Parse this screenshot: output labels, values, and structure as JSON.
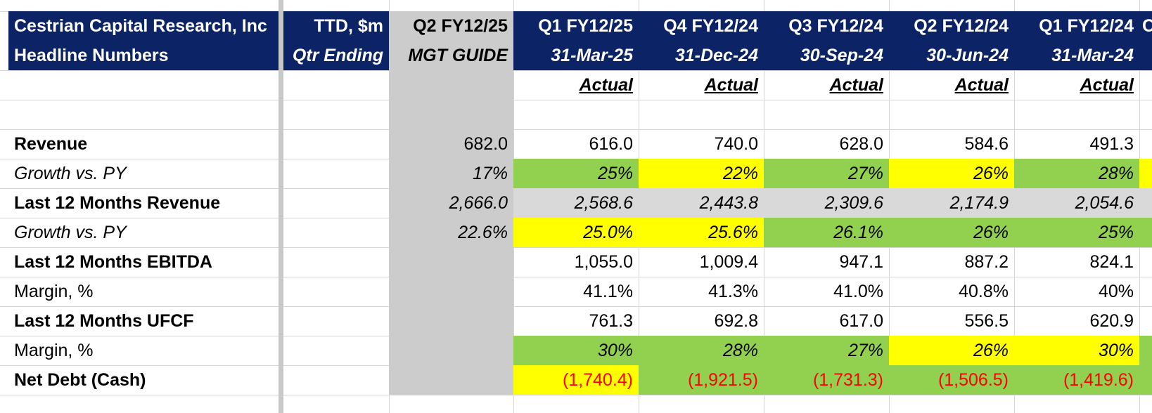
{
  "colors": {
    "header_bg": "#0c2366",
    "guide_bg": "#cccccc",
    "green": "#92d050",
    "yellow": "#ffff00",
    "grey": "#d9d9d9",
    "negative": "#ff0000"
  },
  "header": {
    "title_line1": "Cestrian Capital Research, Inc",
    "title_line2": "Headline Numbers",
    "units_line1": "TTD, $m",
    "units_line2": "Qtr Ending",
    "guide_line1": "Q2 FY12/25",
    "guide_line2": "MGT GUIDE",
    "periods": [
      {
        "label": "Q1 FY12/25",
        "date": "31-Mar-25",
        "status": "Actual"
      },
      {
        "label": "Q4 FY12/24",
        "date": "31-Dec-24",
        "status": "Actual"
      },
      {
        "label": "Q3 FY12/24",
        "date": "30-Sep-24",
        "status": "Actual"
      },
      {
        "label": "Q2 FY12/24",
        "date": "30-Jun-24",
        "status": "Actual"
      },
      {
        "label": "Q1 FY12/24",
        "date": "31-Mar-24",
        "status": "Actual"
      }
    ],
    "partial_next": "C"
  },
  "rows": [
    {
      "label": "Revenue",
      "style": "bold",
      "guide": "682.0",
      "values": [
        "616.0",
        "740.0",
        "628.0",
        "584.6",
        "491.3"
      ],
      "fills": [
        "",
        "",
        "",
        "",
        ""
      ],
      "tail": ""
    },
    {
      "label": "Growth vs. PY",
      "style": "ital",
      "guide": "17%",
      "values": [
        "25%",
        "22%",
        "27%",
        "26%",
        "28%"
      ],
      "fills": [
        "green",
        "yellow",
        "green",
        "yellow",
        "green"
      ],
      "tail": "yellow"
    },
    {
      "label": "Last 12 Months Revenue",
      "style": "bold",
      "guide": "2,666.0",
      "values": [
        "2,568.6",
        "2,443.8",
        "2,309.6",
        "2,174.9",
        "2,054.6"
      ],
      "fills": [
        "grey",
        "grey",
        "grey",
        "grey",
        "grey"
      ],
      "tail": "grey",
      "italic_values": true
    },
    {
      "label": "Growth vs. PY",
      "style": "ital",
      "guide": "22.6%",
      "values": [
        "25.0%",
        "25.6%",
        "26.1%",
        "26%",
        "25%"
      ],
      "fills": [
        "yellow",
        "yellow",
        "green",
        "green",
        "green"
      ],
      "tail": "green"
    },
    {
      "label": "Last 12 Months EBITDA",
      "style": "bold",
      "guide": "",
      "values": [
        "1,055.0",
        "1,009.4",
        "947.1",
        "887.2",
        "824.1"
      ],
      "fills": [
        "",
        "",
        "",
        "",
        ""
      ],
      "tail": ""
    },
    {
      "label": "Margin, %",
      "style": "",
      "guide": "",
      "values": [
        "41.1%",
        "41.3%",
        "41.0%",
        "40.8%",
        "40%"
      ],
      "fills": [
        "",
        "",
        "",
        "",
        ""
      ],
      "tail": ""
    },
    {
      "label": "Last 12 Months UFCF",
      "style": "bold",
      "guide": "",
      "values": [
        "761.3",
        "692.8",
        "617.0",
        "556.5",
        "620.9"
      ],
      "fills": [
        "",
        "",
        "",
        "",
        ""
      ],
      "tail": ""
    },
    {
      "label": "Margin, %",
      "style": "",
      "guide": "",
      "values": [
        "30%",
        "28%",
        "27%",
        "26%",
        "30%"
      ],
      "fills": [
        "green",
        "green",
        "green",
        "yellow",
        "yellow"
      ],
      "tail": "green",
      "italic_values": true
    },
    {
      "label": "Net Debt (Cash)",
      "style": "bold",
      "guide": "",
      "values": [
        "(1,740.4)",
        "(1,921.5)",
        "(1,731.3)",
        "(1,506.5)",
        "(1,419.6)"
      ],
      "fills": [
        "yellow",
        "green",
        "green",
        "green",
        "green"
      ],
      "tail": "green",
      "negative": true
    }
  ]
}
